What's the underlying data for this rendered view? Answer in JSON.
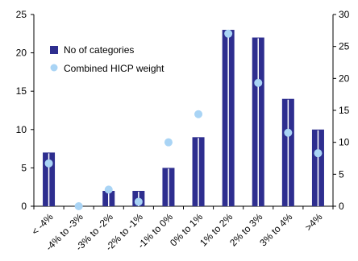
{
  "chart_data": {
    "type": "bar",
    "categories": [
      "< -4%",
      "-4% to -3%",
      "-3% to -2%",
      "-2% to -1%",
      "-1% to 0%",
      "0% to 1%",
      "1% to 2%",
      "2% to 3%",
      "3% to 4%",
      ">4%"
    ],
    "series": [
      {
        "name": "No of categories",
        "type": "bar",
        "axis": "left",
        "values": [
          7,
          0,
          2,
          2,
          5,
          9,
          23,
          22,
          14,
          10
        ]
      },
      {
        "name": "Combined HICP weight",
        "type": "scatter",
        "axis": "right",
        "values": [
          6.7,
          0.0,
          2.6,
          0.7,
          10.0,
          14.4,
          27.0,
          19.3,
          11.5,
          8.3
        ]
      }
    ],
    "ylim_left": [
      0,
      25
    ],
    "ylim_right": [
      0,
      30
    ],
    "yticks_left": [
      "0",
      "5",
      "10",
      "15",
      "20",
      "25"
    ],
    "yticks_right": [
      "0",
      "5",
      "10",
      "15",
      "20",
      "25",
      "30"
    ],
    "legend_position": "top-left",
    "grid": false,
    "colors": {
      "bar": "#2e2e8f",
      "bar_stripe": "#ffffff",
      "marker": "#a9d4f5"
    }
  }
}
